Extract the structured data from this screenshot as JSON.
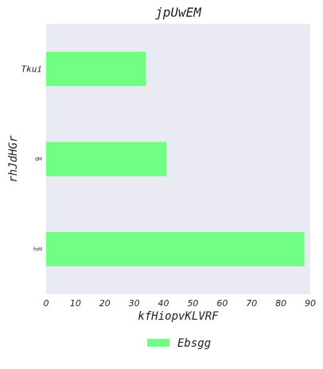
{
  "chart_data": {
    "type": "bar",
    "orientation": "horizontal",
    "title": "jpUwEM",
    "xlabel": "kfHiopvKLVRF",
    "ylabel": "rhJdHGr",
    "categories": [
      "Tkui",
      "dM",
      "foM"
    ],
    "series": [
      {
        "name": "Ebsgg",
        "values": [
          34,
          41,
          88
        ],
        "color": "#70ff84"
      }
    ],
    "xlim": [
      0,
      90
    ],
    "xticks": [
      0,
      10,
      20,
      30,
      40,
      50,
      60,
      70,
      80,
      90
    ],
    "grid": false,
    "legend_position": "bottom-center",
    "plot_background": "#eaeaf2"
  }
}
